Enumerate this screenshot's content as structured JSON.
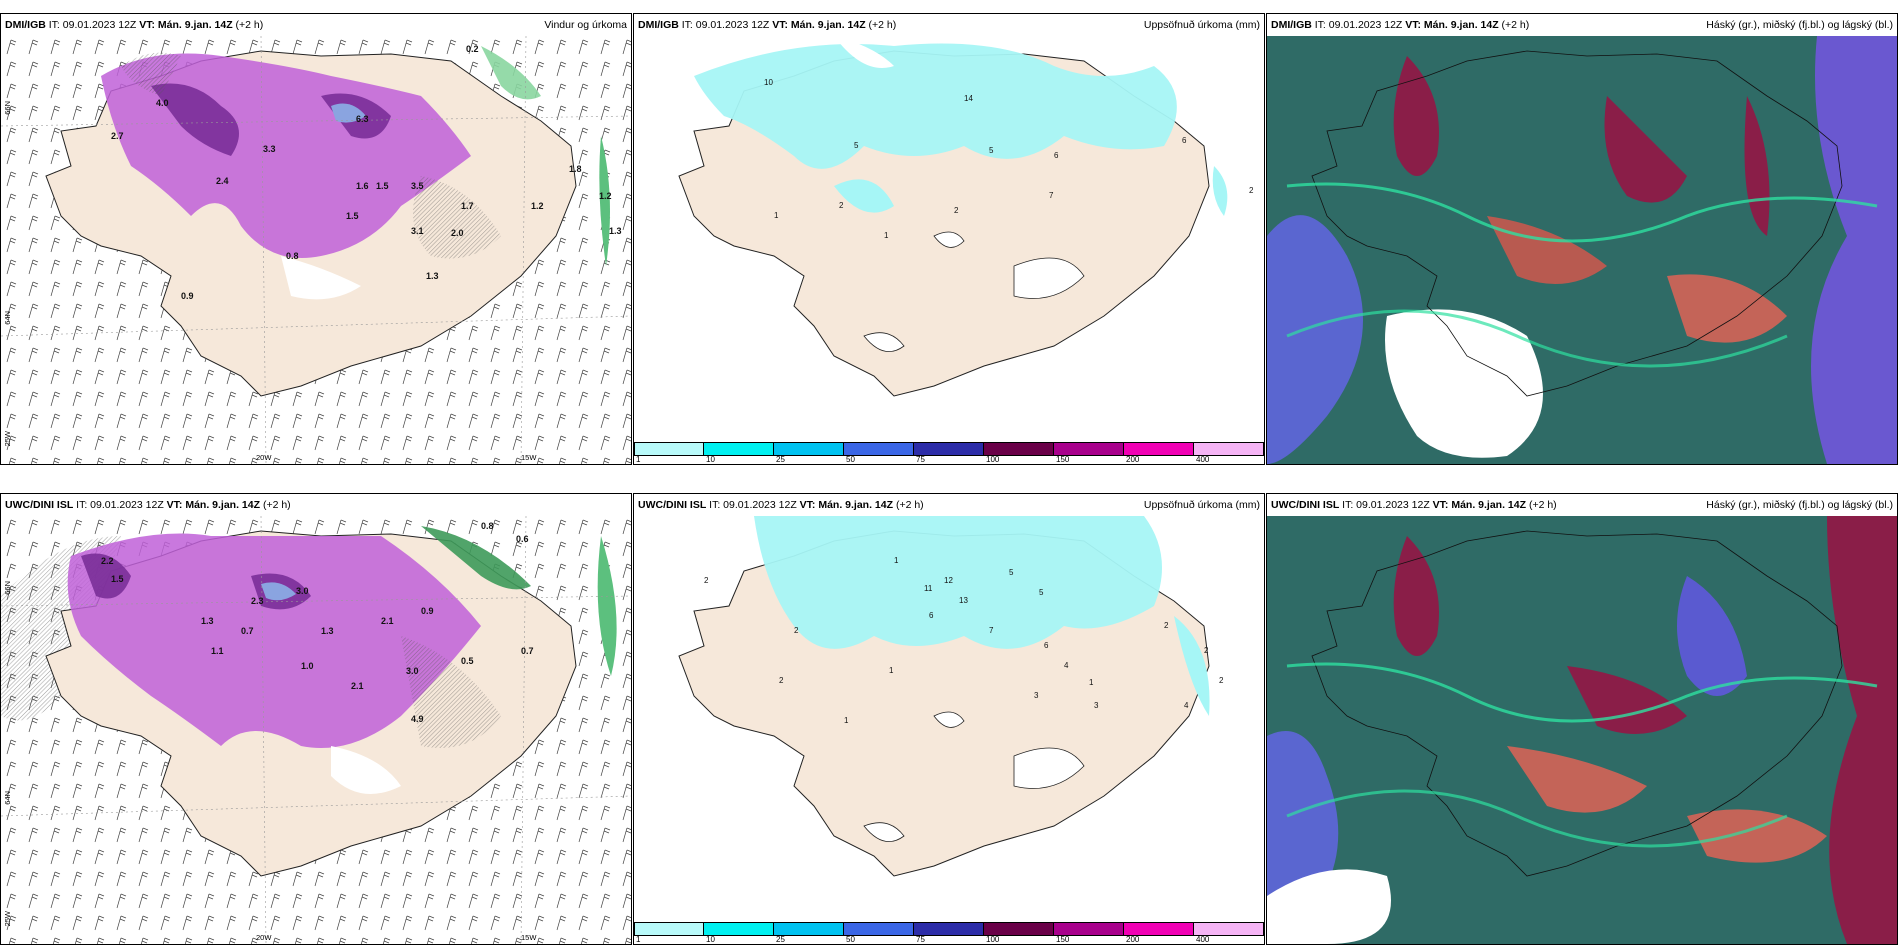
{
  "colors": {
    "land": "#f6e8da",
    "purple": "#b04fd0",
    "dkpurple": "#6e2c8c",
    "green": "#62c88a",
    "cyan": "#a6f6f6"
  },
  "panels": [
    {
      "src": "DMI/IGB",
      "it": "IT: 09.01.2023 12Z",
      "vt": "VT: Mán. 9.jan. 14Z",
      "lead": "(+2 h)",
      "title": "Vindur og úrkoma",
      "xlab1": "20W",
      "xlab2": "15W",
      "ylab1": "66N",
      "ylab2": "64N",
      "ylab3": "25W",
      "labels": [
        "0.2",
        "2.7",
        "3.3",
        "6.3",
        "4.0",
        "2.4",
        "1.6",
        "1.5",
        "3.5",
        "1.7",
        "3.1",
        "2.0",
        "1.5",
        "1.2",
        "1.8",
        "1.2",
        "1.3",
        "0.8",
        "1.3",
        "0.9"
      ]
    },
    {
      "src": "DMI/IGB",
      "it": "IT: 09.01.2023 12Z",
      "vt": "VT: Mán. 9.jan. 14Z",
      "lead": "(+2 h)",
      "title": "Uppsöfnuð úrkoma (mm)",
      "labels": [
        "10",
        "14",
        "5",
        "5",
        "6",
        "7",
        "6",
        "2",
        "1",
        "2",
        "1",
        "2"
      ]
    },
    {
      "src": "DMI/IGB",
      "it": "IT: 09.01.2023 12Z",
      "vt": "VT: Mán. 9.jan. 14Z",
      "lead": "(+2 h)",
      "title": "Háský (gr.), miðský (fj.bl.) og lágský (bl.)"
    },
    {
      "src": "UWC/DINI ISL",
      "it": "IT: 09.01.2023 12Z",
      "vt": "VT: Mán. 9.jan. 14Z",
      "lead": "(+2 h)",
      "title": "",
      "xlab1": "20W",
      "xlab2": "15W",
      "ylab1": "66N",
      "ylab2": "64N",
      "ylab3": "25W",
      "labels": [
        "0.8",
        "0.6",
        "2.2",
        "1.5",
        "3.0",
        "2.3",
        "1.3",
        "0.7",
        "1.3",
        "2.1",
        "0.9",
        "3.0",
        "4.9",
        "1.1",
        "0.5",
        "0.7",
        "2.1",
        "1.0"
      ]
    },
    {
      "src": "UWC/DINI ISL",
      "it": "IT: 09.01.2023 12Z",
      "vt": "VT: Mán. 9.jan. 14Z",
      "lead": "(+2 h)",
      "title": "Uppsöfnuð úrkoma (mm)",
      "labels": [
        "1",
        "2",
        "12",
        "5",
        "11",
        "13",
        "6",
        "5",
        "7",
        "2",
        "6",
        "4",
        "2",
        "1",
        "3",
        "2",
        "1",
        "2",
        "3",
        "1",
        "4",
        "2"
      ]
    },
    {
      "src": "UWC/DINI ISL",
      "it": "IT: 09.01.2023 12Z",
      "vt": "VT: Mán. 9.jan. 14Z",
      "lead": "(+2 h)",
      "title": "Háský (gr.), miðský (fj.bl.) og lágský (bl.)"
    }
  ],
  "colorbar": {
    "ticks": [
      "1",
      "10",
      "25",
      "50",
      "75",
      "100",
      "150",
      "200",
      "400"
    ],
    "colors": [
      "#b8fafa",
      "#00f0f0",
      "#00c2f0",
      "#3a66e6",
      "#2c2ca8",
      "#6a0048",
      "#a8008c",
      "#f000b4",
      "#f5b4f5"
    ]
  }
}
